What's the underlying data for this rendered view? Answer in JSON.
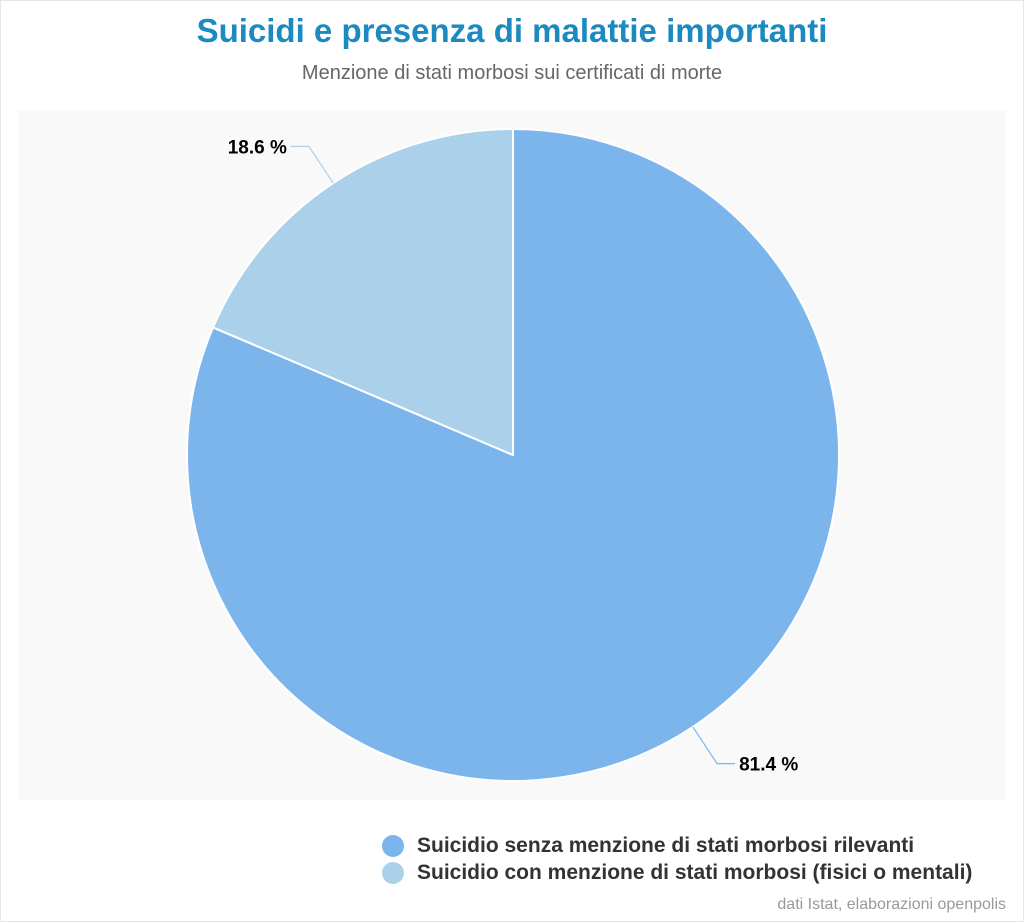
{
  "chart_data": {
    "type": "pie",
    "title": "Suicidi e presenza di malattie importanti",
    "subtitle": "Menzione di stati morbosi sui certificati di morte",
    "slices": [
      {
        "label": "Suicidio senza menzione di stati morbosi rilevanti",
        "value": 81.4,
        "data_label": "81.4 %",
        "color": "#7cb5ec"
      },
      {
        "label": "Suicidio con menzione di stati morbosi (fisici o mentali)",
        "value": 18.6,
        "data_label": "18.6 %",
        "color": "#abd1ea"
      }
    ],
    "start_angle_deg": 0,
    "direction": "clockwise",
    "legend_position": "bottom-right",
    "credit": "dati Istat, elaborazioni openpolis"
  },
  "colors": {
    "title": "#1a8ac0",
    "plot_background": "#f9f9f9"
  }
}
